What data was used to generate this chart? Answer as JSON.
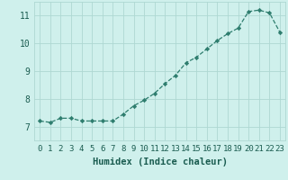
{
  "x": [
    0,
    1,
    2,
    3,
    4,
    5,
    6,
    7,
    8,
    9,
    10,
    11,
    12,
    13,
    14,
    15,
    16,
    17,
    18,
    19,
    20,
    21,
    22,
    23
  ],
  "y": [
    7.2,
    7.15,
    7.3,
    7.3,
    7.2,
    7.2,
    7.2,
    7.2,
    7.45,
    7.75,
    7.95,
    8.2,
    8.55,
    8.85,
    9.3,
    9.5,
    9.8,
    10.1,
    10.35,
    10.55,
    11.15,
    11.2,
    11.1,
    10.4
  ],
  "title": "",
  "xlabel": "Humidex (Indice chaleur)",
  "ylabel": "",
  "ylim": [
    6.5,
    11.5
  ],
  "xlim": [
    -0.5,
    23.5
  ],
  "line_color": "#2e7d6e",
  "marker_color": "#2e7d6e",
  "bg_color": "#cff0ec",
  "grid_color": "#aed8d2",
  "text_color": "#1a5c50",
  "yticks": [
    7,
    8,
    9,
    10,
    11
  ],
  "xticks": [
    0,
    1,
    2,
    3,
    4,
    5,
    6,
    7,
    8,
    9,
    10,
    11,
    12,
    13,
    14,
    15,
    16,
    17,
    18,
    19,
    20,
    21,
    22,
    23
  ],
  "tick_fontsize": 6.5,
  "xlabel_fontsize": 7.5
}
